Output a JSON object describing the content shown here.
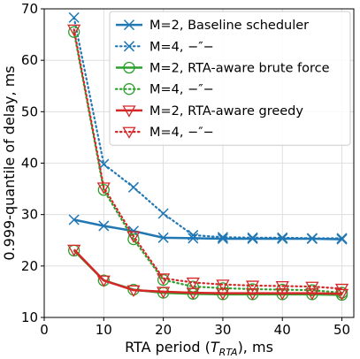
{
  "chart_data": {
    "type": "line",
    "xlabel": "RTA period (T_RTA), ms",
    "xlabel_main": "RTA period (",
    "xlabel_T": "T",
    "xlabel_sub": "RTA",
    "xlabel_end": "), ms",
    "ylabel": "0.999-quantile of delay, ms",
    "xlim": [
      0,
      52
    ],
    "ylim": [
      10,
      70
    ],
    "xticks": [
      0,
      10,
      20,
      30,
      40,
      50
    ],
    "yticks": [
      10,
      20,
      30,
      40,
      50,
      60,
      70
    ],
    "grid": true,
    "legend_position": "top-right",
    "series": [
      {
        "name": "M=2, Baseline scheduler",
        "color": "#1f77b4",
        "marker": "x",
        "dash": "solid",
        "x": [
          5,
          10,
          15,
          20,
          25,
          30,
          35,
          40,
          45,
          50
        ],
        "y": [
          29.0,
          27.8,
          26.8,
          25.5,
          25.4,
          25.3,
          25.3,
          25.3,
          25.3,
          25.2
        ]
      },
      {
        "name": "M=4, −″−",
        "color": "#1f77b4",
        "marker": "x",
        "dash": "dotted",
        "x": [
          5,
          10,
          15,
          20,
          25,
          30,
          35,
          40,
          45,
          50
        ],
        "y": [
          68.3,
          39.8,
          35.3,
          30.2,
          26.0,
          25.6,
          25.5,
          25.5,
          25.4,
          25.4
        ]
      },
      {
        "name": "M=2, RTA-aware brute force",
        "color": "#2ca02c",
        "marker": "circle",
        "dash": "solid",
        "x": [
          5,
          10,
          15,
          20,
          25,
          30,
          35,
          40,
          45,
          50
        ],
        "y": [
          23.0,
          17.2,
          15.4,
          14.8,
          14.6,
          14.5,
          14.5,
          14.5,
          14.5,
          14.4
        ]
      },
      {
        "name": "M=4, −″−",
        "color": "#2ca02c",
        "marker": "circle",
        "dash": "dotted",
        "x": [
          5,
          10,
          15,
          20,
          25,
          30,
          35,
          40,
          45,
          50
        ],
        "y": [
          65.5,
          34.8,
          25.2,
          17.3,
          16.0,
          15.7,
          15.5,
          15.4,
          15.3,
          14.8
        ]
      },
      {
        "name": "M=2, RTA-aware greedy",
        "color": "#d62728",
        "marker": "triangle",
        "dash": "solid",
        "x": [
          5,
          10,
          15,
          20,
          25,
          30,
          35,
          40,
          45,
          50
        ],
        "y": [
          23.2,
          17.2,
          15.3,
          15.0,
          14.8,
          14.7,
          14.7,
          14.7,
          14.7,
          14.6
        ]
      },
      {
        "name": "M=4, −″−",
        "color": "#d62728",
        "marker": "triangle",
        "dash": "dotted",
        "x": [
          5,
          10,
          15,
          20,
          25,
          30,
          35,
          40,
          45,
          50
        ],
        "y": [
          66.0,
          35.3,
          25.8,
          17.6,
          16.8,
          16.4,
          16.2,
          16.1,
          16.0,
          15.6
        ]
      }
    ]
  }
}
